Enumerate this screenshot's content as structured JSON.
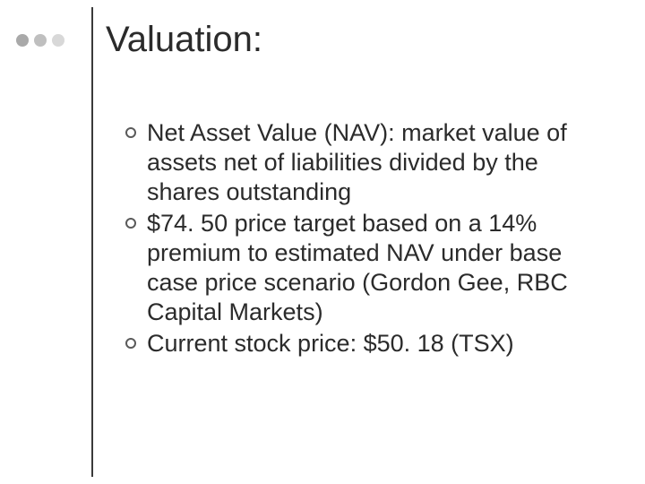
{
  "title": "Valuation:",
  "deco_colors": [
    "#a9a9a9",
    "#bfbfbf",
    "#d8d8d8"
  ],
  "bullets": [
    "Net Asset Value (NAV): market value of assets net of liabilities divided by the shares outstanding",
    "$74. 50 price target based on a 14% premium to estimated NAV under base case price scenario (Gordon Gee, RBC Capital Markets)",
    "Current stock price: $50. 18 (TSX)"
  ],
  "title_fontsize": 40,
  "body_fontsize": 27,
  "text_color": "#2b2b2b",
  "background_color": "#ffffff",
  "vline_color": "#3a3a3a",
  "ring_color": "#5a5a5a"
}
